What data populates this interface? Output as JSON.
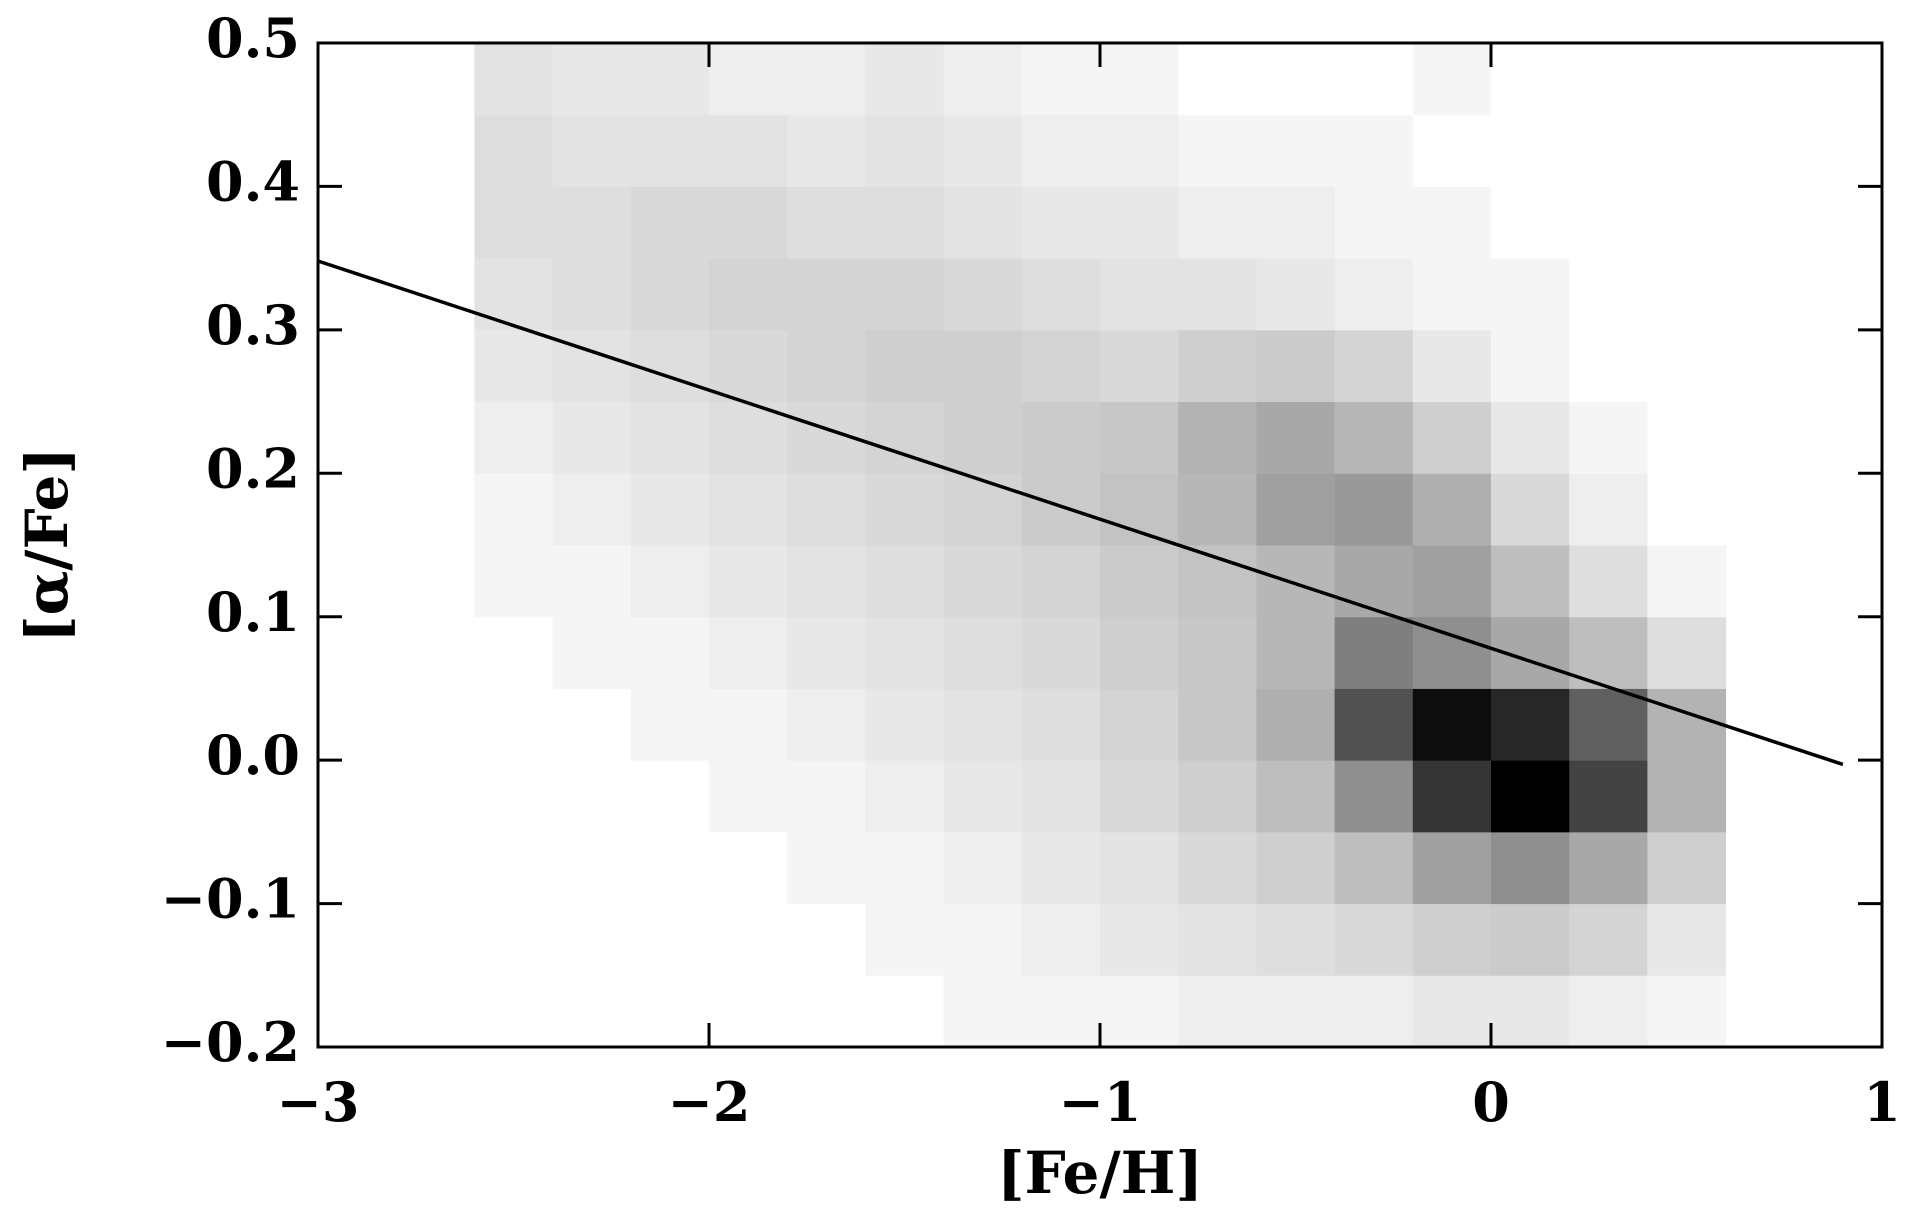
{
  "chart_data": {
    "type": "hist2d",
    "x_label": "[Fe/H]",
    "y_label": "[α/Fe]",
    "xlim": [
      -3,
      1
    ],
    "ylim": [
      -0.2,
      0.5
    ],
    "xticks": [
      {
        "value": -3,
        "label": "−3"
      },
      {
        "value": -2,
        "label": "−2"
      },
      {
        "value": -1,
        "label": "−1"
      },
      0,
      1
    ],
    "yticks": [
      {
        "value": -0.2,
        "label": "−0.2"
      },
      {
        "value": -0.1,
        "label": "−0.1"
      },
      {
        "value": 0,
        "label": "0.0"
      },
      0.1,
      0.2,
      0.3,
      0.4,
      0.5
    ],
    "x_bins": [
      -2.6,
      -2.4,
      -2.2,
      -2.0,
      -1.8,
      -1.6,
      -1.4,
      -1.2,
      -1.0,
      -0.8,
      -0.6,
      -0.4,
      -0.2,
      0.0,
      0.2,
      0.4,
      0.6
    ],
    "y_bins": [
      -0.2,
      -0.15,
      -0.1,
      -0.05,
      0.0,
      0.05,
      0.1,
      0.15,
      0.2,
      0.25,
      0.3,
      0.35,
      0.4,
      0.45,
      0.5
    ],
    "values": [
      [
        0,
        0,
        0,
        0,
        0,
        0,
        1,
        1,
        1,
        2,
        2,
        2,
        3,
        3,
        2,
        1
      ],
      [
        0,
        0,
        0,
        0,
        0,
        1,
        1,
        2,
        3,
        4,
        5,
        6,
        8,
        9,
        7,
        3
      ],
      [
        0,
        0,
        0,
        0,
        1,
        1,
        2,
        3,
        4,
        6,
        8,
        12,
        20,
        25,
        18,
        8
      ],
      [
        0,
        0,
        0,
        1,
        1,
        2,
        3,
        4,
        6,
        8,
        12,
        25,
        55,
        75,
        50,
        15
      ],
      [
        0,
        0,
        1,
        1,
        2,
        3,
        4,
        5,
        7,
        10,
        16,
        45,
        70,
        60,
        40,
        15
      ],
      [
        0,
        1,
        1,
        2,
        3,
        4,
        5,
        6,
        8,
        10,
        14,
        30,
        25,
        18,
        12,
        5
      ],
      [
        1,
        1,
        2,
        3,
        4,
        5,
        6,
        7,
        9,
        11,
        14,
        18,
        20,
        12,
        5,
        1
      ],
      [
        1,
        2,
        3,
        4,
        5,
        6,
        7,
        9,
        11,
        14,
        20,
        22,
        16,
        6,
        2,
        0
      ],
      [
        2,
        3,
        4,
        5,
        6,
        7,
        8,
        9,
        10,
        15,
        18,
        14,
        8,
        3,
        1,
        0
      ],
      [
        3,
        4,
        5,
        6,
        7,
        8,
        8,
        7,
        6,
        8,
        9,
        7,
        3,
        1,
        0,
        0
      ],
      [
        4,
        5,
        6,
        7,
        7,
        7,
        6,
        5,
        4,
        4,
        3,
        2,
        1,
        1,
        0,
        0
      ],
      [
        5,
        5,
        6,
        6,
        5,
        5,
        4,
        3,
        3,
        2,
        2,
        1,
        1,
        0,
        0,
        0
      ],
      [
        5,
        4,
        4,
        4,
        3,
        4,
        3,
        2,
        2,
        1,
        1,
        1,
        0,
        0,
        0,
        0
      ],
      [
        4,
        3,
        3,
        2,
        2,
        3,
        2,
        1,
        1,
        0,
        0,
        0,
        1,
        0,
        0,
        0
      ]
    ],
    "colormap": "gray_r",
    "line": {
      "x": [
        -3,
        0.9
      ],
      "y": [
        0.348,
        -0.003
      ],
      "color": "#000000"
    }
  }
}
